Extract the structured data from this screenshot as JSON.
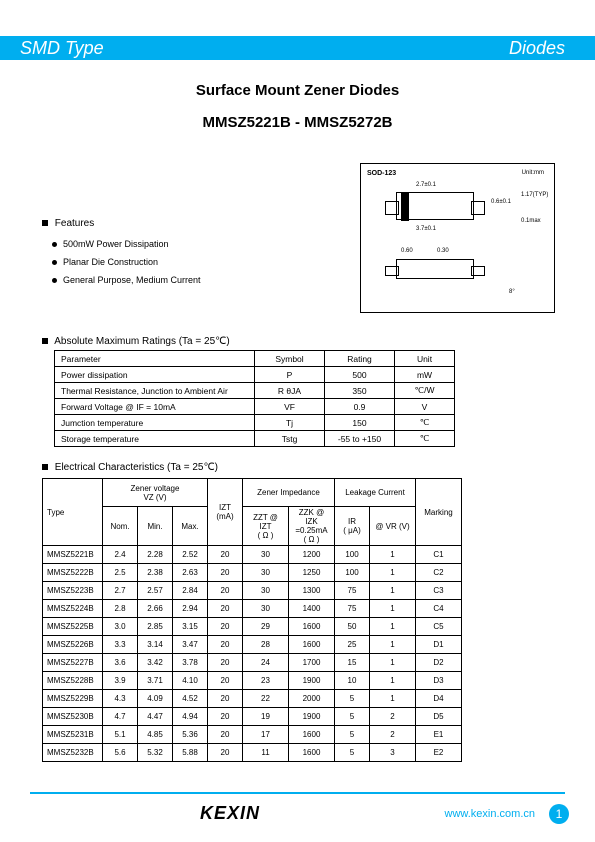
{
  "header": {
    "left": "SMD Type",
    "right": "Diodes"
  },
  "title1": "Surface Mount Zener Diodes",
  "title2": "MMSZ5221B - MMSZ5272B",
  "features": {
    "heading": "Features",
    "items": [
      "500mW Power Dissipation",
      "Planar Die Construction",
      "General Purpose, Medium Current"
    ]
  },
  "package": {
    "label": "SOD-123",
    "unit": "Unit:mm",
    "dims": {
      "w1": "2.7±0.1",
      "w2": "3.7±0.1",
      "h1": "0.6±0.1",
      "h2": "1.17(TYP)",
      "h3": "0.1max",
      "a": "0.60",
      "b": "0.30",
      "c": "8°"
    }
  },
  "amr": {
    "heading": "Absolute Maximum Ratings (Ta = 25℃)",
    "cols": [
      "Parameter",
      "Symbol",
      "Rating",
      "Unit"
    ],
    "rows": [
      [
        "Power dissipation",
        "P",
        "500",
        "mW"
      ],
      [
        "Thermal Resistance, Junction to Ambient Air",
        "R θJA",
        "350",
        "℃/W"
      ],
      [
        "Forward Voltage        @ IF = 10mA",
        "VF",
        "0.9",
        "V"
      ],
      [
        "Jumction temperature",
        "Tj",
        "150",
        "℃"
      ],
      [
        "Storage temperature",
        "Tstg",
        "-55 to +150",
        "℃"
      ]
    ]
  },
  "ec": {
    "heading": "Electrical Characteristics (Ta = 25℃)",
    "groupHeads": [
      "Type",
      "Zener voltage\nVZ  (V)",
      "Zener Impedance",
      "Leakage Current",
      "Marking"
    ],
    "subHeads": [
      "Nom.",
      "Min.",
      "Max.",
      "IZT\n(mA)",
      "ZZT @ IZT\n( Ω )",
      "ZZK @ IZK\n=0.25mA\n( Ω )",
      "IR\n( μA)",
      "@ VR   (V)"
    ],
    "rows": [
      [
        "MMSZ5221B",
        "2.4",
        "2.28",
        "2.52",
        "20",
        "30",
        "1200",
        "100",
        "1",
        "C1"
      ],
      [
        "MMSZ5222B",
        "2.5",
        "2.38",
        "2.63",
        "20",
        "30",
        "1250",
        "100",
        "1",
        "C2"
      ],
      [
        "MMSZ5223B",
        "2.7",
        "2.57",
        "2.84",
        "20",
        "30",
        "1300",
        "75",
        "1",
        "C3"
      ],
      [
        "MMSZ5224B",
        "2.8",
        "2.66",
        "2.94",
        "20",
        "30",
        "1400",
        "75",
        "1",
        "C4"
      ],
      [
        "MMSZ5225B",
        "3.0",
        "2.85",
        "3.15",
        "20",
        "29",
        "1600",
        "50",
        "1",
        "C5"
      ],
      [
        "MMSZ5226B",
        "3.3",
        "3.14",
        "3.47",
        "20",
        "28",
        "1600",
        "25",
        "1",
        "D1"
      ],
      [
        "MMSZ5227B",
        "3.6",
        "3.42",
        "3.78",
        "20",
        "24",
        "1700",
        "15",
        "1",
        "D2"
      ],
      [
        "MMSZ5228B",
        "3.9",
        "3.71",
        "4.10",
        "20",
        "23",
        "1900",
        "10",
        "1",
        "D3"
      ],
      [
        "MMSZ5229B",
        "4.3",
        "4.09",
        "4.52",
        "20",
        "22",
        "2000",
        "5",
        "1",
        "D4"
      ],
      [
        "MMSZ5230B",
        "4.7",
        "4.47",
        "4.94",
        "20",
        "19",
        "1900",
        "5",
        "2",
        "D5"
      ],
      [
        "MMSZ5231B",
        "5.1",
        "4.85",
        "5.36",
        "20",
        "17",
        "1600",
        "5",
        "2",
        "E1"
      ],
      [
        "MMSZ5232B",
        "5.6",
        "5.32",
        "5.88",
        "20",
        "11",
        "1600",
        "5",
        "3",
        "E2"
      ]
    ]
  },
  "footer": {
    "logo": "KEXIN",
    "url": "www.kexin.com.cn",
    "page": "1"
  }
}
